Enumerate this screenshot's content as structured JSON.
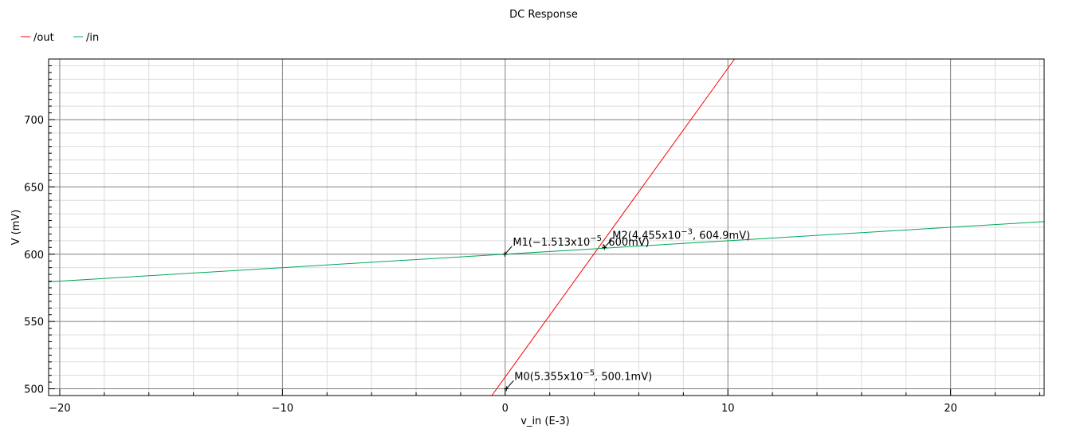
{
  "chart_data": {
    "type": "line",
    "title": "DC Response",
    "xlabel": "v_in (E-3)",
    "ylabel": "V (mV)",
    "xlim": [
      -20.5,
      24.2
    ],
    "ylim": [
      495,
      745
    ],
    "x_ticks": [
      {
        "value": -20,
        "label": "−20"
      },
      {
        "value": -10,
        "label": "−10"
      },
      {
        "value": 0,
        "label": "0"
      },
      {
        "value": 10,
        "label": "10"
      },
      {
        "value": 20,
        "label": "20"
      }
    ],
    "y_ticks": [
      {
        "value": 500,
        "label": "500"
      },
      {
        "value": 550,
        "label": "550"
      },
      {
        "value": 600,
        "label": "600"
      },
      {
        "value": 650,
        "label": "650"
      },
      {
        "value": 700,
        "label": "700"
      }
    ],
    "grid": true,
    "legend_position": "top-left",
    "series": [
      {
        "name": "/out",
        "color": "#ff0000",
        "x": [
          -0.6,
          10.3
        ],
        "y": [
          495,
          745
        ]
      },
      {
        "name": "/in",
        "color": "#00a85a",
        "x": [
          -20.5,
          24.2
        ],
        "y": [
          579.5,
          624.2
        ]
      }
    ],
    "markers": [
      {
        "id": "M0",
        "x": 0.05355,
        "y": 500.1,
        "text": "M0(5.355x10",
        "exp": "−5",
        "tail": ", 500.1mV)"
      },
      {
        "id": "M1",
        "x": -0.01513,
        "y": 600,
        "text": "M1(−1.513x10",
        "exp": "−5",
        "tail": ", 600mV)"
      },
      {
        "id": "M2",
        "x": 4.455,
        "y": 604.9,
        "text": "M2(4.455x10",
        "exp": "−3",
        "tail": ", 604.9mV)"
      }
    ]
  },
  "colors": {
    "major_grid": "#808080",
    "minor_grid": "#dcdcdc",
    "frame": "#000000"
  }
}
